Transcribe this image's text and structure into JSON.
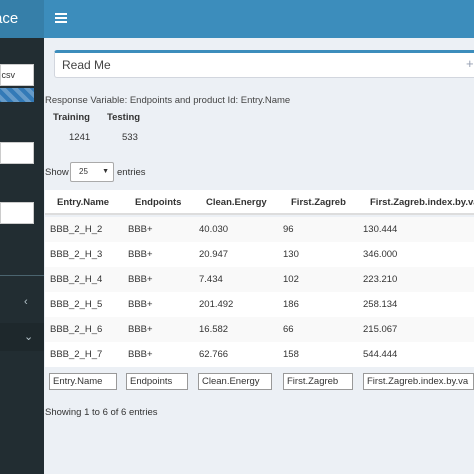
{
  "header": {
    "brand_text": "ace"
  },
  "sidebar": {
    "file_name": ".csv"
  },
  "readme": {
    "title": "Read Me"
  },
  "response_line": "Response Variable: Endpoints and product Id: Entry.Name",
  "split": {
    "training_label": "Training",
    "testing_label": "Testing",
    "training_value": "1241",
    "testing_value": "533"
  },
  "length": {
    "show_label": "Show",
    "selected": "25",
    "entries_label": "entries"
  },
  "table": {
    "columns": [
      "Entry.Name",
      "Endpoints",
      "Clean.Energy",
      "First.Zagreb",
      "First.Zagreb.index.by.val"
    ],
    "rows": [
      [
        "BBB_2_H_2",
        "BBB+",
        "40.030",
        "96",
        "130.444"
      ],
      [
        "BBB_2_H_3",
        "BBB+",
        "20.947",
        "130",
        "346.000"
      ],
      [
        "BBB_2_H_4",
        "BBB+",
        "7.434",
        "102",
        "223.210"
      ],
      [
        "BBB_2_H_5",
        "BBB+",
        "201.492",
        "186",
        "258.134"
      ],
      [
        "BBB_2_H_6",
        "BBB+",
        "16.582",
        "66",
        "215.067"
      ],
      [
        "BBB_2_H_7",
        "BBB+",
        "62.766",
        "158",
        "544.444"
      ]
    ],
    "filters": [
      "Entry.Name",
      "Endpoints",
      "Clean.Energy",
      "First.Zagreb",
      "First.Zagreb.index.by.va"
    ]
  },
  "info": "Showing 1 to 6 of 6 entries"
}
